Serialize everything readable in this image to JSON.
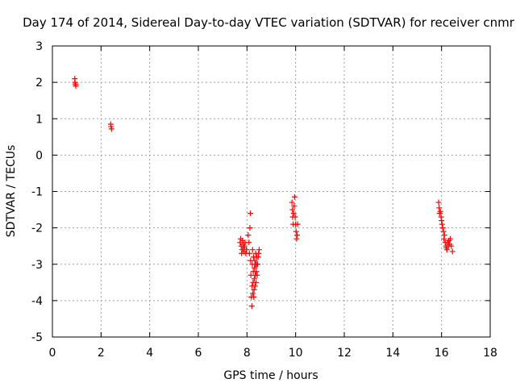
{
  "chart_data": {
    "type": "scatter",
    "title": "Day 174 of 2014, Sidereal Day-to-day VTEC variation (SDTVAR) for receiver cnmr",
    "xlabel": "GPS time / hours",
    "ylabel": "SDTVAR / TECUs",
    "xlim": [
      0,
      18
    ],
    "ylim": [
      -5,
      3
    ],
    "xticks": [
      0,
      2,
      4,
      6,
      8,
      10,
      12,
      14,
      16,
      18
    ],
    "yticks": [
      3,
      2,
      1,
      0,
      -1,
      -2,
      -3,
      -4,
      -5
    ],
    "grid": true,
    "marker": "+",
    "color": "#ff0000",
    "series": [
      {
        "name": "SDTVAR",
        "x": [
          0.92,
          0.93,
          0.95,
          0.96,
          2.4,
          2.41,
          2.43,
          7.72,
          7.74,
          7.76,
          7.78,
          7.8,
          7.82,
          7.84,
          7.86,
          7.88,
          7.9,
          7.92,
          7.95,
          7.98,
          8.05,
          8.08,
          8.1,
          8.12,
          8.14,
          8.15,
          8.16,
          8.18,
          8.2,
          8.21,
          8.22,
          8.23,
          8.24,
          8.25,
          8.26,
          8.27,
          8.28,
          8.29,
          8.3,
          8.31,
          8.32,
          8.33,
          8.34,
          8.35,
          8.36,
          8.37,
          8.38,
          8.39,
          8.4,
          8.42,
          8.44,
          8.46,
          8.48,
          8.5,
          9.85,
          9.87,
          9.88,
          9.9,
          9.92,
          9.94,
          9.96,
          9.98,
          10.0,
          10.02,
          10.04,
          10.06,
          10.08,
          15.88,
          15.9,
          15.92,
          15.95,
          15.98,
          16.0,
          16.02,
          16.05,
          16.08,
          16.1,
          16.12,
          16.15,
          16.18,
          16.2,
          16.22,
          16.25,
          16.28,
          16.3,
          16.33,
          16.36,
          16.4,
          16.45
        ],
        "y": [
          2.1,
          2.0,
          1.95,
          1.9,
          0.85,
          0.78,
          0.72,
          -2.4,
          -2.3,
          -2.5,
          -2.7,
          -2.6,
          -2.35,
          -2.45,
          -2.55,
          -2.65,
          -2.5,
          -2.4,
          -2.7,
          -2.6,
          -2.2,
          -2.4,
          -2.7,
          -2.0,
          -1.6,
          -2.9,
          -3.3,
          -3.9,
          -4.15,
          -3.6,
          -3.0,
          -2.6,
          -3.8,
          -3.5,
          -3.2,
          -2.8,
          -3.9,
          -3.7,
          -3.4,
          -3.1,
          -2.9,
          -3.6,
          -3.3,
          -3.0,
          -2.7,
          -3.5,
          -3.2,
          -3.0,
          -2.8,
          -3.3,
          -3.0,
          -2.8,
          -2.7,
          -2.6,
          -1.3,
          -1.5,
          -1.7,
          -1.9,
          -1.6,
          -1.4,
          -1.15,
          -1.7,
          -1.9,
          -2.1,
          -2.3,
          -2.2,
          -1.9,
          -1.3,
          -1.45,
          -1.6,
          -1.55,
          -1.7,
          -1.8,
          -1.9,
          -2.0,
          -2.1,
          -2.3,
          -2.2,
          -2.4,
          -2.5,
          -2.55,
          -2.6,
          -2.4,
          -2.5,
          -2.35,
          -2.45,
          -2.3,
          -2.5,
          -2.65
        ]
      }
    ]
  }
}
